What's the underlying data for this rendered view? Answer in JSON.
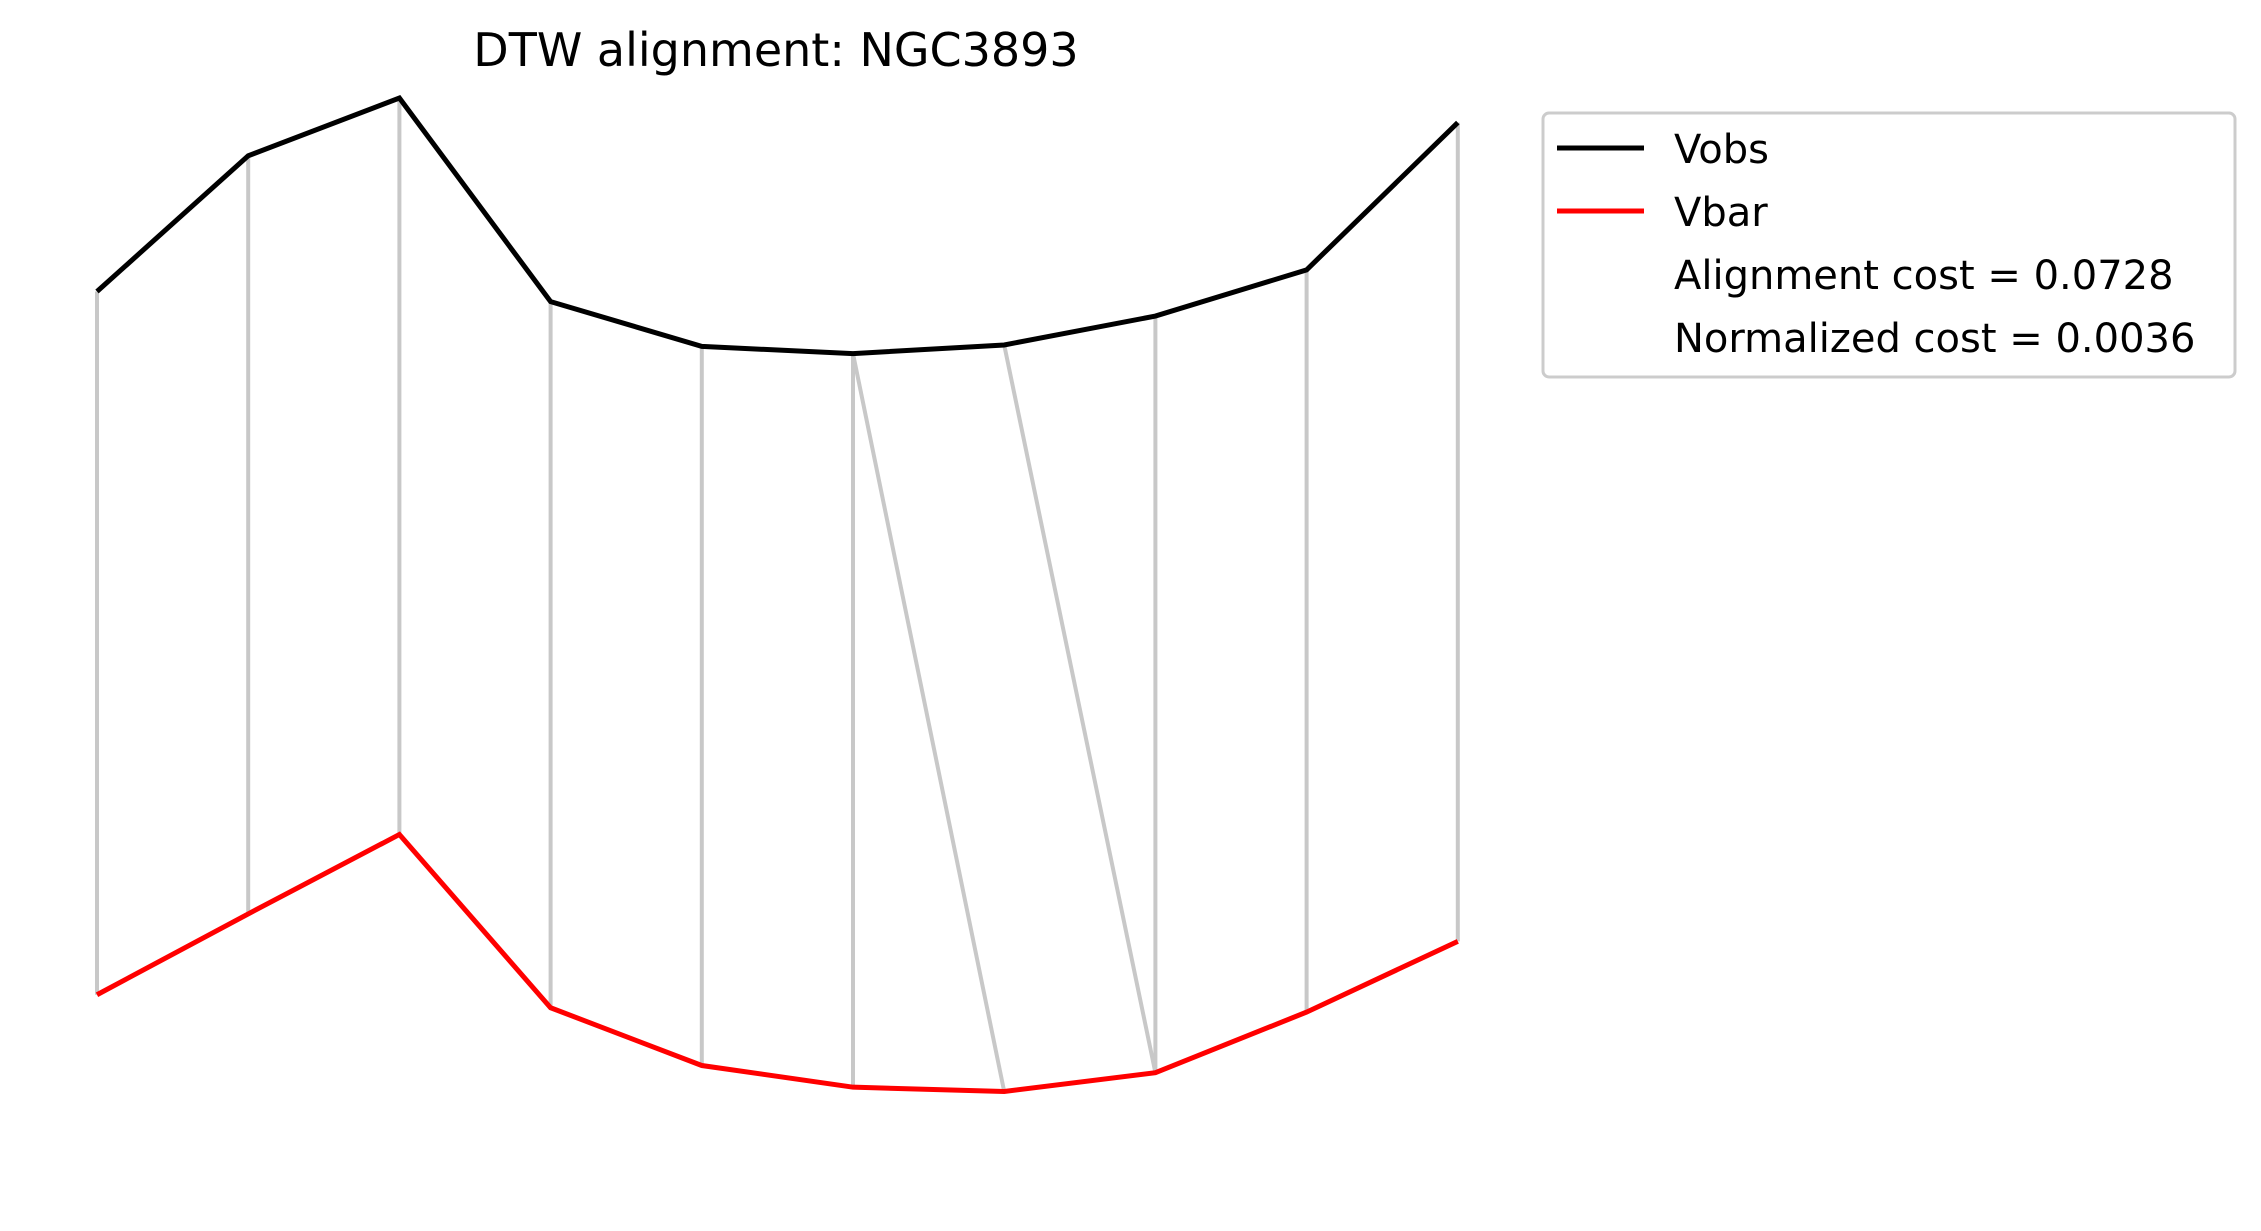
{
  "chart_data": {
    "type": "line",
    "title": "DTW alignment: NGC3893",
    "xlabel": "",
    "ylabel": "",
    "axes_visible": false,
    "grid": false,
    "legend_position": "top-right, outside plot",
    "x": [
      0,
      1,
      2,
      3,
      4,
      5,
      6,
      7,
      8,
      9
    ],
    "series": [
      {
        "name": "Vobs",
        "color": "#000000",
        "values": [
          -1.62,
          -0.68,
          -0.28,
          -1.69,
          -2.0,
          -2.05,
          -1.99,
          -1.79,
          -1.47,
          -0.45
        ]
      },
      {
        "name": "Vbar",
        "color": "#ff0000",
        "values": [
          -6.49,
          -5.93,
          -5.38,
          -6.58,
          -6.98,
          -7.13,
          -7.16,
          -7.03,
          -6.61,
          -6.12
        ]
      }
    ],
    "alignment_pairs": [
      [
        0,
        0
      ],
      [
        1,
        1
      ],
      [
        2,
        2
      ],
      [
        3,
        3
      ],
      [
        4,
        4
      ],
      [
        5,
        5
      ],
      [
        5,
        6
      ],
      [
        6,
        7
      ],
      [
        7,
        7
      ],
      [
        8,
        8
      ],
      [
        9,
        9
      ]
    ],
    "alignment_color": "#c8c8c8",
    "annotations": [
      "Alignment cost = 0.0728",
      "Normalized cost = 0.0036"
    ]
  }
}
